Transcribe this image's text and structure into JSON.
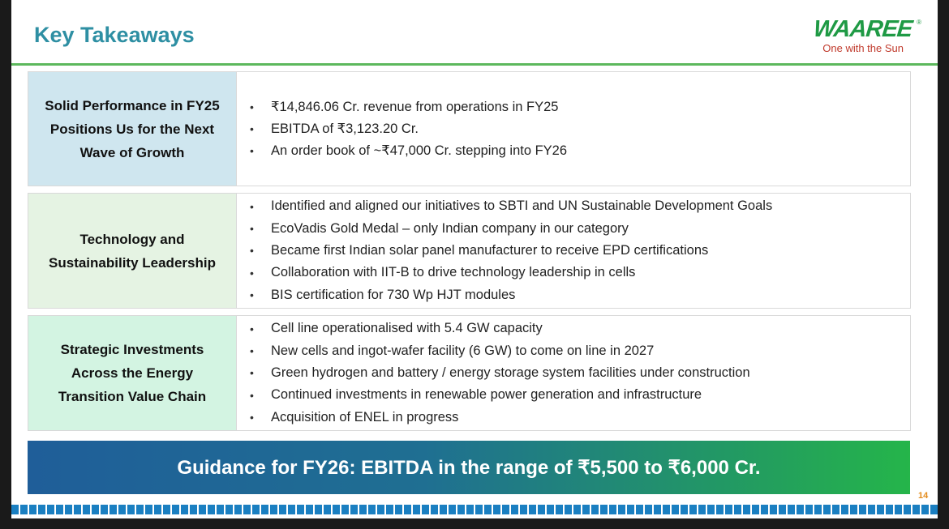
{
  "header": {
    "title": "Key Takeaways",
    "logo_word": "WAAREE",
    "logo_reg": "®",
    "logo_tagline": "One with the Sun"
  },
  "rows": [
    {
      "label_lines": [
        "Solid Performance in FY25",
        "Positions Us for the Next",
        "Wave of Growth"
      ],
      "bullets": [
        "₹14,846.06 Cr. revenue from operations in FY25",
        "EBITDA of ₹3,123.20 Cr.",
        "An order book of ~₹47,000 Cr. stepping into FY26"
      ]
    },
    {
      "label_lines": [
        "Technology and",
        "Sustainability Leadership"
      ],
      "bullets": [
        "Identified and aligned our initiatives to SBTI and UN Sustainable Development Goals",
        "EcoVadis Gold Medal – only Indian company in our category",
        "Became first Indian solar panel manufacturer to receive EPD certifications",
        "Collaboration with IIT-B to drive technology leadership in cells",
        "BIS certification for 730 Wp HJT modules"
      ]
    },
    {
      "label_lines": [
        "Strategic Investments",
        "Across the Energy",
        "Transition Value Chain"
      ],
      "bullets": [
        "Cell line operationalised with 5.4 GW capacity",
        "New cells and ingot-wafer facility (6 GW) to come on line in 2027",
        "Green hydrogen and battery / energy storage system facilities under construction",
        "Continued investments in renewable power generation and infrastructure",
        "Acquisition of ENEL in progress"
      ]
    }
  ],
  "guidance": "Guidance for FY26: EBITDA in the range of ₹5,500 to ₹6,000 Cr.",
  "page_number": "14",
  "bullet_glyph": "•",
  "colors": {
    "title": "#2e8fa3",
    "brand_green": "#1f9a45",
    "tagline_red": "#c0392b",
    "row1_label_bg": "#cfe6ef",
    "row2_label_bg": "#e5f3e3",
    "row3_label_bg": "#d3f4e2",
    "footer_blue": "#1a7fc1",
    "page_number": "#e38b1b"
  }
}
